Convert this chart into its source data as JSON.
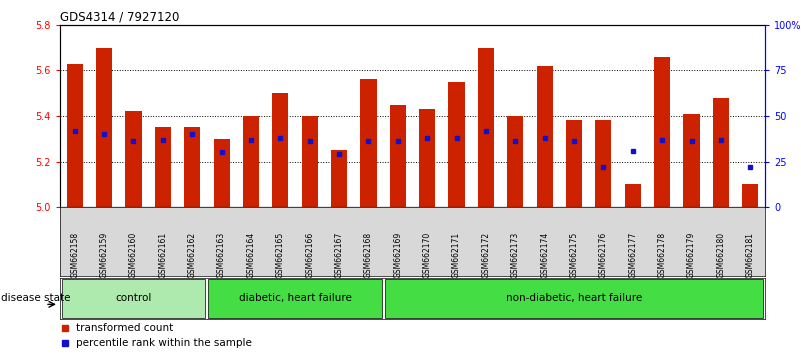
{
  "title": "GDS4314 / 7927120",
  "samples": [
    "GSM662158",
    "GSM662159",
    "GSM662160",
    "GSM662161",
    "GSM662162",
    "GSM662163",
    "GSM662164",
    "GSM662165",
    "GSM662166",
    "GSM662167",
    "GSM662168",
    "GSM662169",
    "GSM662170",
    "GSM662171",
    "GSM662172",
    "GSM662173",
    "GSM662174",
    "GSM662175",
    "GSM662176",
    "GSM662177",
    "GSM662178",
    "GSM662179",
    "GSM662180",
    "GSM662181"
  ],
  "red_values": [
    5.63,
    5.7,
    5.42,
    5.35,
    5.35,
    5.3,
    5.4,
    5.5,
    5.4,
    5.25,
    5.56,
    5.45,
    5.43,
    5.55,
    5.7,
    5.4,
    5.62,
    5.38,
    5.38,
    5.1,
    5.66,
    5.41,
    5.48,
    5.1
  ],
  "blue_values": [
    42,
    40,
    36,
    37,
    40,
    30,
    37,
    38,
    36,
    29,
    36,
    36,
    38,
    38,
    42,
    36,
    38,
    36,
    22,
    31,
    37,
    36,
    37,
    22
  ],
  "groups_def": [
    {
      "start": 0,
      "end": 4,
      "color": "#aeeaae",
      "label": "control"
    },
    {
      "start": 5,
      "end": 10,
      "color": "#44dd44",
      "label": "diabetic, heart failure"
    },
    {
      "start": 11,
      "end": 23,
      "color": "#44dd44",
      "label": "non-diabetic, heart failure"
    }
  ],
  "ylim_left": [
    5.0,
    5.8
  ],
  "ylim_right": [
    0,
    100
  ],
  "yticks_left": [
    5.0,
    5.2,
    5.4,
    5.6,
    5.8
  ],
  "yticks_right": [
    0,
    25,
    50,
    75,
    100
  ],
  "ytick_labels_right": [
    "0",
    "25",
    "50",
    "75",
    "100%"
  ],
  "bar_color_red": "#CC2200",
  "bar_color_blue": "#1111CC",
  "background_color": "#ffffff"
}
